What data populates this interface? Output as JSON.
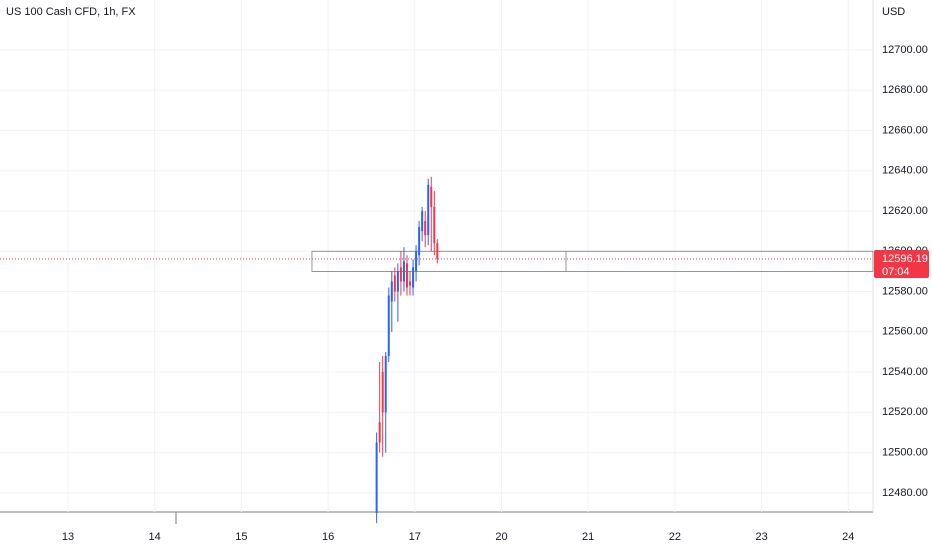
{
  "chart_data": {
    "type": "candlestick",
    "title": "US 100 Cash CFD, 1h, FX",
    "currency": "USD",
    "last_price": 12596.19,
    "countdown": "07:04",
    "up_color": "#2962ff",
    "down_color": "#f23645",
    "grid": true,
    "xlim": [
      12.216,
      22.285
    ],
    "ylim": [
      12470.5,
      12724.8
    ],
    "xticks": [
      13,
      14,
      15,
      16,
      17,
      {
        "value": 18,
        "label": "20"
      },
      {
        "value": 19,
        "label": "21"
      },
      {
        "value": 20,
        "label": "22"
      },
      {
        "value": 21,
        "label": "23"
      },
      {
        "value": 22,
        "label": "24"
      }
    ],
    "yticks": [
      {
        "value": 12480,
        "label": "12480.00"
      },
      {
        "value": 12500,
        "label": "12500.00"
      },
      {
        "value": 12520,
        "label": "12520.00"
      },
      {
        "value": 12540,
        "label": "12540.00"
      },
      {
        "value": 12560,
        "label": "12560.00"
      },
      {
        "value": 12580,
        "label": "12580.00"
      },
      {
        "value": 12600,
        "label": "12600.00"
      },
      {
        "value": 12620,
        "label": "12620.00"
      },
      {
        "value": 12640,
        "label": "12640.00"
      },
      {
        "value": 12660,
        "label": "12660.00"
      },
      {
        "value": 12680,
        "label": "12680.00"
      },
      {
        "value": 12700,
        "label": "12700.00"
      }
    ],
    "zone": {
      "low": 12590,
      "high": 12600,
      "x_start": 15.814,
      "x_mid": 18.744
    },
    "x": [
      16.56,
      16.595,
      16.63,
      16.665,
      16.7,
      16.735,
      16.77,
      16.805,
      16.84,
      16.875,
      16.91,
      16.945,
      16.98,
      17.015,
      17.05,
      17.085,
      17.12,
      17.155,
      17.19,
      17.225,
      17.26
    ],
    "open": [
      12470,
      12515,
      12540,
      12520,
      12548,
      12575,
      12588,
      12580,
      12592,
      12585,
      12594,
      12585,
      12582,
      12590,
      12598,
      12610,
      12615,
      12608,
      12632,
      12622,
      12604
    ],
    "high": [
      12510,
      12545,
      12548,
      12550,
      12582,
      12590,
      12592,
      12594,
      12600,
      12602,
      12598,
      12590,
      12596,
      12603,
      12615,
      12622,
      12620,
      12636,
      12637,
      12630,
      12606
    ],
    "low": [
      12465,
      12500,
      12498,
      12500,
      12545,
      12560,
      12575,
      12565,
      12578,
      12580,
      12578,
      12578,
      12578,
      12585,
      12593,
      12605,
      12602,
      12603,
      12600,
      12598,
      12594
    ],
    "close": [
      12505,
      12505,
      12520,
      12548,
      12578,
      12585,
      12580,
      12590,
      12585,
      12595,
      12582,
      12583,
      12592,
      12600,
      12612,
      12620,
      12608,
      12633,
      12622,
      12604,
      12596.19
    ]
  }
}
